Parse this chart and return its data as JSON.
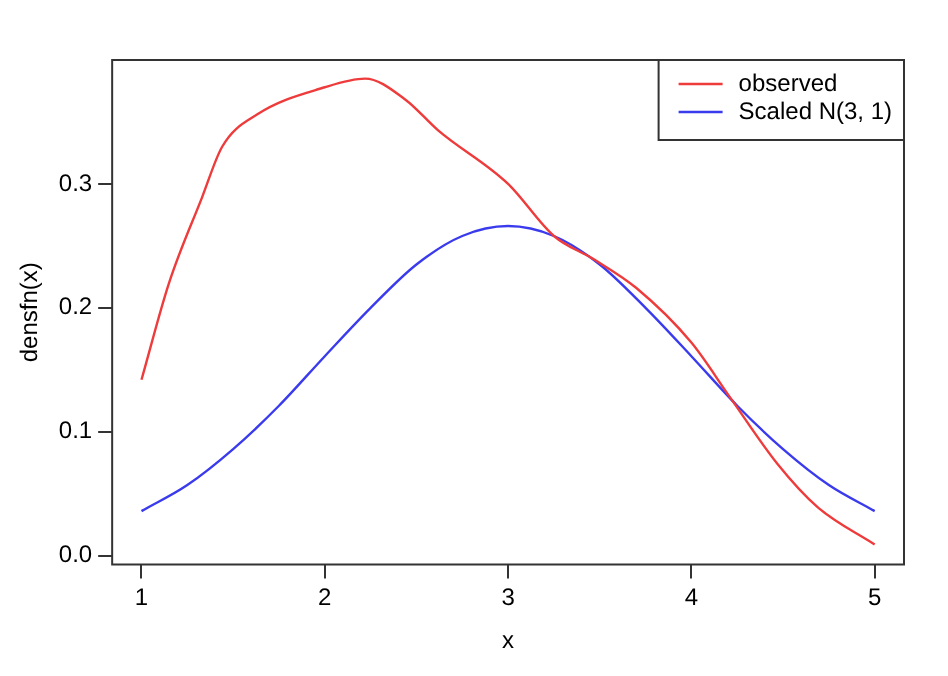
{
  "chart_data": {
    "type": "line",
    "xlabel": "x",
    "ylabel": "densfn(x)",
    "xlim": [
      0.84,
      5.16
    ],
    "ylim": [
      -0.007,
      0.4
    ],
    "xticks": [
      1,
      2,
      3,
      4,
      5
    ],
    "yticks": [
      {
        "value": 0,
        "label": "0.0"
      },
      {
        "value": 0.1,
        "label": "0.1"
      },
      {
        "value": 0.2,
        "label": "0.2"
      },
      {
        "value": 0.3,
        "label": "0.3"
      }
    ],
    "legend": "top right",
    "grid": false,
    "series": [
      {
        "name": "observed",
        "color": "#ee3b3b",
        "x": [
          1,
          1.15,
          1.33,
          1.44,
          1.63,
          2,
          2.22,
          2.44,
          2.62,
          3,
          3.25,
          3.47,
          3.7,
          4,
          4.21,
          4.47,
          4.69,
          5
        ],
        "values": [
          0.142,
          0.22,
          0.289,
          0.33,
          0.356,
          0.378,
          0.385,
          0.368,
          0.343,
          0.3,
          0.258,
          0.239,
          0.216,
          0.172,
          0.128,
          0.074,
          0.039,
          0.009
        ]
      },
      {
        "name": "Scaled N(3, 1)",
        "color": "#3b3bee",
        "x": [
          1,
          1.25,
          1.5,
          1.75,
          2,
          2.25,
          2.5,
          2.75,
          3,
          3.25,
          3.5,
          3.75,
          4,
          4.25,
          4.5,
          4.75,
          5
        ],
        "values": [
          0.036,
          0.057,
          0.086,
          0.121,
          0.161,
          0.2,
          0.235,
          0.258,
          0.266,
          0.258,
          0.235,
          0.2,
          0.161,
          0.121,
          0.086,
          0.057,
          0.036
        ]
      }
    ]
  }
}
